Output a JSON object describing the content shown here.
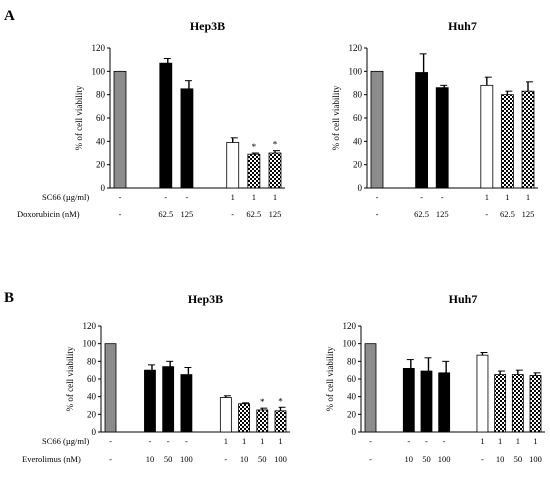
{
  "panels": [
    {
      "letter": "A",
      "treatment_rows": [
        "SC66 (µg/ml)",
        "Doxorubicin (nM)"
      ]
    },
    {
      "letter": "B",
      "treatment_rows": [
        "SC66 (µg/ml)",
        "Everolimus (nM)"
      ]
    }
  ],
  "colors": {
    "control": "#8c8c8c",
    "drug": "#000000",
    "sc66": "#ffffff",
    "combo": "checkered"
  },
  "chart_data": [
    {
      "type": "bar",
      "panel": "A",
      "title": "Hep3B",
      "ylabel": "% of cell viability",
      "ylim": [
        0,
        120
      ],
      "yticks": [
        0,
        20,
        40,
        60,
        80,
        100,
        120
      ],
      "rows": [
        [
          "-",
          "-",
          "-",
          "1",
          "1",
          "1"
        ],
        [
          "-",
          "62.5",
          "125",
          "-",
          "62.5",
          "125"
        ]
      ],
      "bars": [
        {
          "group": "control",
          "value": 100,
          "error": 0,
          "star": false
        },
        {
          "group": "drug",
          "value": 107,
          "error": 4,
          "star": false
        },
        {
          "group": "drug",
          "value": 85,
          "error": 7,
          "star": false
        },
        {
          "group": "sc66",
          "value": 39,
          "error": 4,
          "star": false
        },
        {
          "group": "combo",
          "value": 29,
          "error": 1,
          "star": true
        },
        {
          "group": "combo",
          "value": 30,
          "error": 2,
          "star": true
        }
      ]
    },
    {
      "type": "bar",
      "panel": "A",
      "title": "Huh7",
      "ylabel": "% of cell viability",
      "ylim": [
        0,
        120
      ],
      "yticks": [
        0,
        20,
        40,
        60,
        80,
        100,
        120
      ],
      "rows": [
        [
          "-",
          "-",
          "-",
          "1",
          "1",
          "1"
        ],
        [
          "-",
          "62.5",
          "125",
          "-",
          "62.5",
          "125"
        ]
      ],
      "bars": [
        {
          "group": "control",
          "value": 100,
          "error": 0,
          "star": false
        },
        {
          "group": "drug",
          "value": 99,
          "error": 16,
          "star": false
        },
        {
          "group": "drug",
          "value": 86,
          "error": 2,
          "star": false
        },
        {
          "group": "sc66",
          "value": 88,
          "error": 7,
          "star": false
        },
        {
          "group": "combo",
          "value": 80,
          "error": 3,
          "star": false
        },
        {
          "group": "combo",
          "value": 83,
          "error": 8,
          "star": false
        }
      ]
    },
    {
      "type": "bar",
      "panel": "B",
      "title": "Hep3B",
      "ylabel": "% of cell viability",
      "ylim": [
        0,
        120
      ],
      "yticks": [
        0,
        20,
        40,
        60,
        80,
        100,
        120
      ],
      "rows": [
        [
          "-",
          "-",
          "-",
          "-",
          "1",
          "1",
          "1",
          "1"
        ],
        [
          "-",
          "10",
          "50",
          "100",
          "-",
          "10",
          "50",
          "100"
        ]
      ],
      "bars": [
        {
          "group": "control",
          "value": 100,
          "error": 0,
          "star": false
        },
        {
          "group": "drug",
          "value": 70,
          "error": 6,
          "star": false
        },
        {
          "group": "drug",
          "value": 74,
          "error": 6,
          "star": false
        },
        {
          "group": "drug",
          "value": 65,
          "error": 8,
          "star": false
        },
        {
          "group": "sc66",
          "value": 39,
          "error": 2,
          "star": false
        },
        {
          "group": "combo",
          "value": 32,
          "error": 1,
          "star": false
        },
        {
          "group": "combo",
          "value": 25,
          "error": 2,
          "star": true
        },
        {
          "group": "combo",
          "value": 24,
          "error": 4,
          "star": true
        }
      ]
    },
    {
      "type": "bar",
      "panel": "B",
      "title": "Huh7",
      "ylabel": "% of cell viability",
      "ylim": [
        0,
        120
      ],
      "yticks": [
        0,
        20,
        40,
        60,
        80,
        100,
        120
      ],
      "rows": [
        [
          "-",
          "-",
          "-",
          "-",
          "1",
          "1",
          "1",
          "1"
        ],
        [
          "-",
          "10",
          "50",
          "100",
          "-",
          "10",
          "50",
          "100"
        ]
      ],
      "bars": [
        {
          "group": "control",
          "value": 100,
          "error": 0,
          "star": false
        },
        {
          "group": "drug",
          "value": 72,
          "error": 10,
          "star": false
        },
        {
          "group": "drug",
          "value": 69,
          "error": 15,
          "star": false
        },
        {
          "group": "drug",
          "value": 67,
          "error": 13,
          "star": false
        },
        {
          "group": "sc66",
          "value": 87,
          "error": 3,
          "star": false
        },
        {
          "group": "combo",
          "value": 65,
          "error": 4,
          "star": false
        },
        {
          "group": "combo",
          "value": 65,
          "error": 5,
          "star": false
        },
        {
          "group": "combo",
          "value": 64,
          "error": 3,
          "star": false
        }
      ]
    }
  ]
}
